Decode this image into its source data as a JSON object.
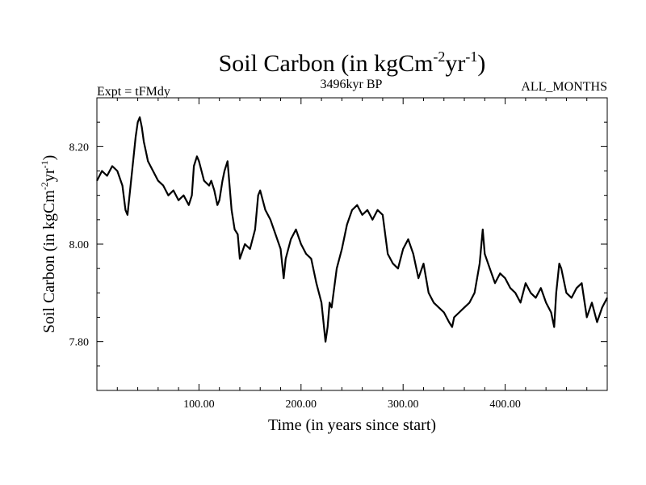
{
  "chart_data": {
    "type": "line",
    "title": {
      "main": "Soil Carbon (in kgCm",
      "exp1": "-2",
      "mid": "yr",
      "exp2": "-1",
      "end": ")"
    },
    "left_label": "Expt = tFMdy",
    "center_label": "3496kyr BP",
    "right_label": "ALL_MONTHS",
    "xlabel": "Time (in years since start)",
    "ylabel": {
      "main": "Soil Carbon (in kgCm",
      "exp1": "-2",
      "mid": "yr",
      "exp2": "-1",
      "end": ")"
    },
    "xlim": [
      0,
      500
    ],
    "ylim": [
      7.7,
      8.3
    ],
    "x_ticks": [
      {
        "value": 100,
        "label": "100.00"
      },
      {
        "value": 200,
        "label": "200.00"
      },
      {
        "value": 300,
        "label": "300.00"
      },
      {
        "value": 400,
        "label": "400.00"
      }
    ],
    "y_ticks": [
      {
        "value": 7.8,
        "label": "7.80"
      },
      {
        "value": 8.0,
        "label": "8.00"
      },
      {
        "value": 8.2,
        "label": "8.20"
      }
    ],
    "x_minor_step": 20,
    "y_minor_step": 0.05,
    "grid": false,
    "series": [
      {
        "name": "Soil Carbon",
        "color": "#000000",
        "x": [
          0,
          5,
          10,
          15,
          20,
          25,
          28,
          30,
          33,
          36,
          38,
          40,
          42,
          44,
          46,
          48,
          50,
          55,
          60,
          65,
          70,
          75,
          80,
          85,
          90,
          93,
          95,
          98,
          100,
          105,
          110,
          112,
          115,
          118,
          120,
          123,
          125,
          128,
          130,
          132,
          135,
          138,
          140,
          145,
          150,
          155,
          158,
          160,
          165,
          170,
          175,
          180,
          183,
          185,
          190,
          195,
          200,
          205,
          210,
          215,
          220,
          222,
          224,
          226,
          228,
          230,
          235,
          240,
          245,
          250,
          255,
          260,
          265,
          270,
          275,
          280,
          285,
          290,
          295,
          300,
          305,
          310,
          315,
          320,
          325,
          330,
          335,
          340,
          345,
          348,
          350,
          355,
          360,
          365,
          370,
          375,
          378,
          380,
          385,
          390,
          395,
          400,
          405,
          410,
          415,
          420,
          425,
          430,
          435,
          440,
          445,
          448,
          450,
          453,
          455,
          460,
          465,
          470,
          475,
          480,
          485,
          490,
          495,
          500
        ],
        "y": [
          8.13,
          8.15,
          8.14,
          8.16,
          8.15,
          8.12,
          8.07,
          8.06,
          8.12,
          8.18,
          8.22,
          8.25,
          8.26,
          8.24,
          8.21,
          8.19,
          8.17,
          8.15,
          8.13,
          8.12,
          8.1,
          8.11,
          8.09,
          8.1,
          8.08,
          8.1,
          8.16,
          8.18,
          8.17,
          8.13,
          8.12,
          8.13,
          8.11,
          8.08,
          8.09,
          8.13,
          8.15,
          8.17,
          8.12,
          8.07,
          8.03,
          8.02,
          7.97,
          8.0,
          7.99,
          8.03,
          8.1,
          8.11,
          8.07,
          8.05,
          8.02,
          7.99,
          7.93,
          7.97,
          8.01,
          8.03,
          8.0,
          7.98,
          7.97,
          7.92,
          7.88,
          7.84,
          7.8,
          7.83,
          7.88,
          7.87,
          7.95,
          7.99,
          8.04,
          8.07,
          8.08,
          8.06,
          8.07,
          8.05,
          8.07,
          8.06,
          7.98,
          7.96,
          7.95,
          7.99,
          8.01,
          7.98,
          7.93,
          7.96,
          7.9,
          7.88,
          7.87,
          7.86,
          7.84,
          7.83,
          7.85,
          7.86,
          7.87,
          7.88,
          7.9,
          7.96,
          8.03,
          7.98,
          7.95,
          7.92,
          7.94,
          7.93,
          7.91,
          7.9,
          7.88,
          7.92,
          7.9,
          7.89,
          7.91,
          7.88,
          7.86,
          7.83,
          7.9,
          7.96,
          7.95,
          7.9,
          7.89,
          7.91,
          7.92,
          7.85,
          7.88,
          7.84,
          7.87,
          7.89
        ]
      }
    ]
  }
}
